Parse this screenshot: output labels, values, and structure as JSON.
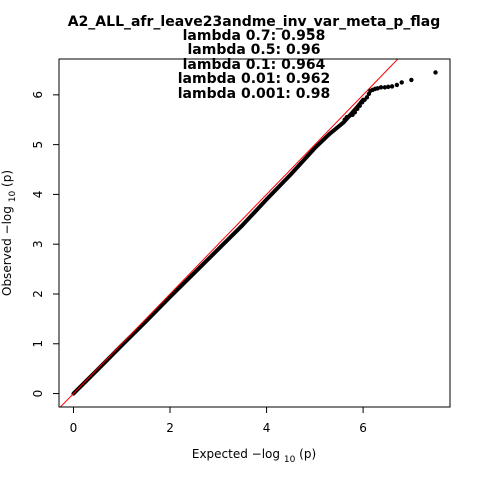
{
  "chart_data": {
    "type": "scatter",
    "title": "A2_ALL_afr_leave23andme_inv_var_meta_p_flag",
    "subtitles": [
      "lambda 0.7: 0.958",
      "lambda 0.5: 0.96",
      "lambda 0.1: 0.964",
      "lambda 0.01: 0.962",
      "lambda 0.001: 0.98"
    ],
    "xlabel": {
      "prefix": "Expected ",
      "main": "−log",
      "sub": "10",
      "suffix": "(p)"
    },
    "ylabel": {
      "prefix": "Observed ",
      "main": "−log",
      "sub": "10",
      "suffix": "(p)"
    },
    "xlim": [
      -0.3,
      7.8
    ],
    "ylim": [
      -0.27,
      6.72
    ],
    "xticks": [
      0,
      2,
      4,
      6
    ],
    "yticks": [
      0,
      1,
      2,
      3,
      4,
      5,
      6
    ],
    "reference_line": {
      "slope": 1,
      "intercept": 0,
      "color": "#ff0000"
    },
    "point_color": "#000000",
    "curve": [
      [
        0.0,
        0.0
      ],
      [
        0.5,
        0.48
      ],
      [
        1.0,
        0.97
      ],
      [
        1.5,
        1.45
      ],
      [
        2.0,
        1.94
      ],
      [
        2.5,
        2.42
      ],
      [
        3.0,
        2.9
      ],
      [
        3.5,
        3.38
      ],
      [
        4.0,
        3.9
      ],
      [
        4.5,
        4.4
      ],
      [
        5.0,
        4.93
      ],
      [
        5.3,
        5.21
      ],
      [
        5.6,
        5.45
      ],
      [
        5.9,
        5.78
      ],
      [
        6.0,
        5.9
      ]
    ],
    "tail_points": [
      [
        5.62,
        5.5
      ],
      [
        5.66,
        5.55
      ],
      [
        5.72,
        5.58
      ],
      [
        5.78,
        5.6
      ],
      [
        5.83,
        5.65
      ],
      [
        5.88,
        5.72
      ],
      [
        5.93,
        5.78
      ],
      [
        5.98,
        5.85
      ],
      [
        6.03,
        5.9
      ],
      [
        6.08,
        5.95
      ],
      [
        6.12,
        6.02
      ],
      [
        6.15,
        6.08
      ],
      [
        6.2,
        6.1
      ],
      [
        6.25,
        6.12
      ],
      [
        6.3,
        6.13
      ],
      [
        6.37,
        6.15
      ],
      [
        6.45,
        6.15
      ],
      [
        6.52,
        6.16
      ],
      [
        6.6,
        6.17
      ],
      [
        6.7,
        6.2
      ],
      [
        6.8,
        6.25
      ],
      [
        7.0,
        6.3
      ],
      [
        7.5,
        6.45
      ]
    ]
  }
}
